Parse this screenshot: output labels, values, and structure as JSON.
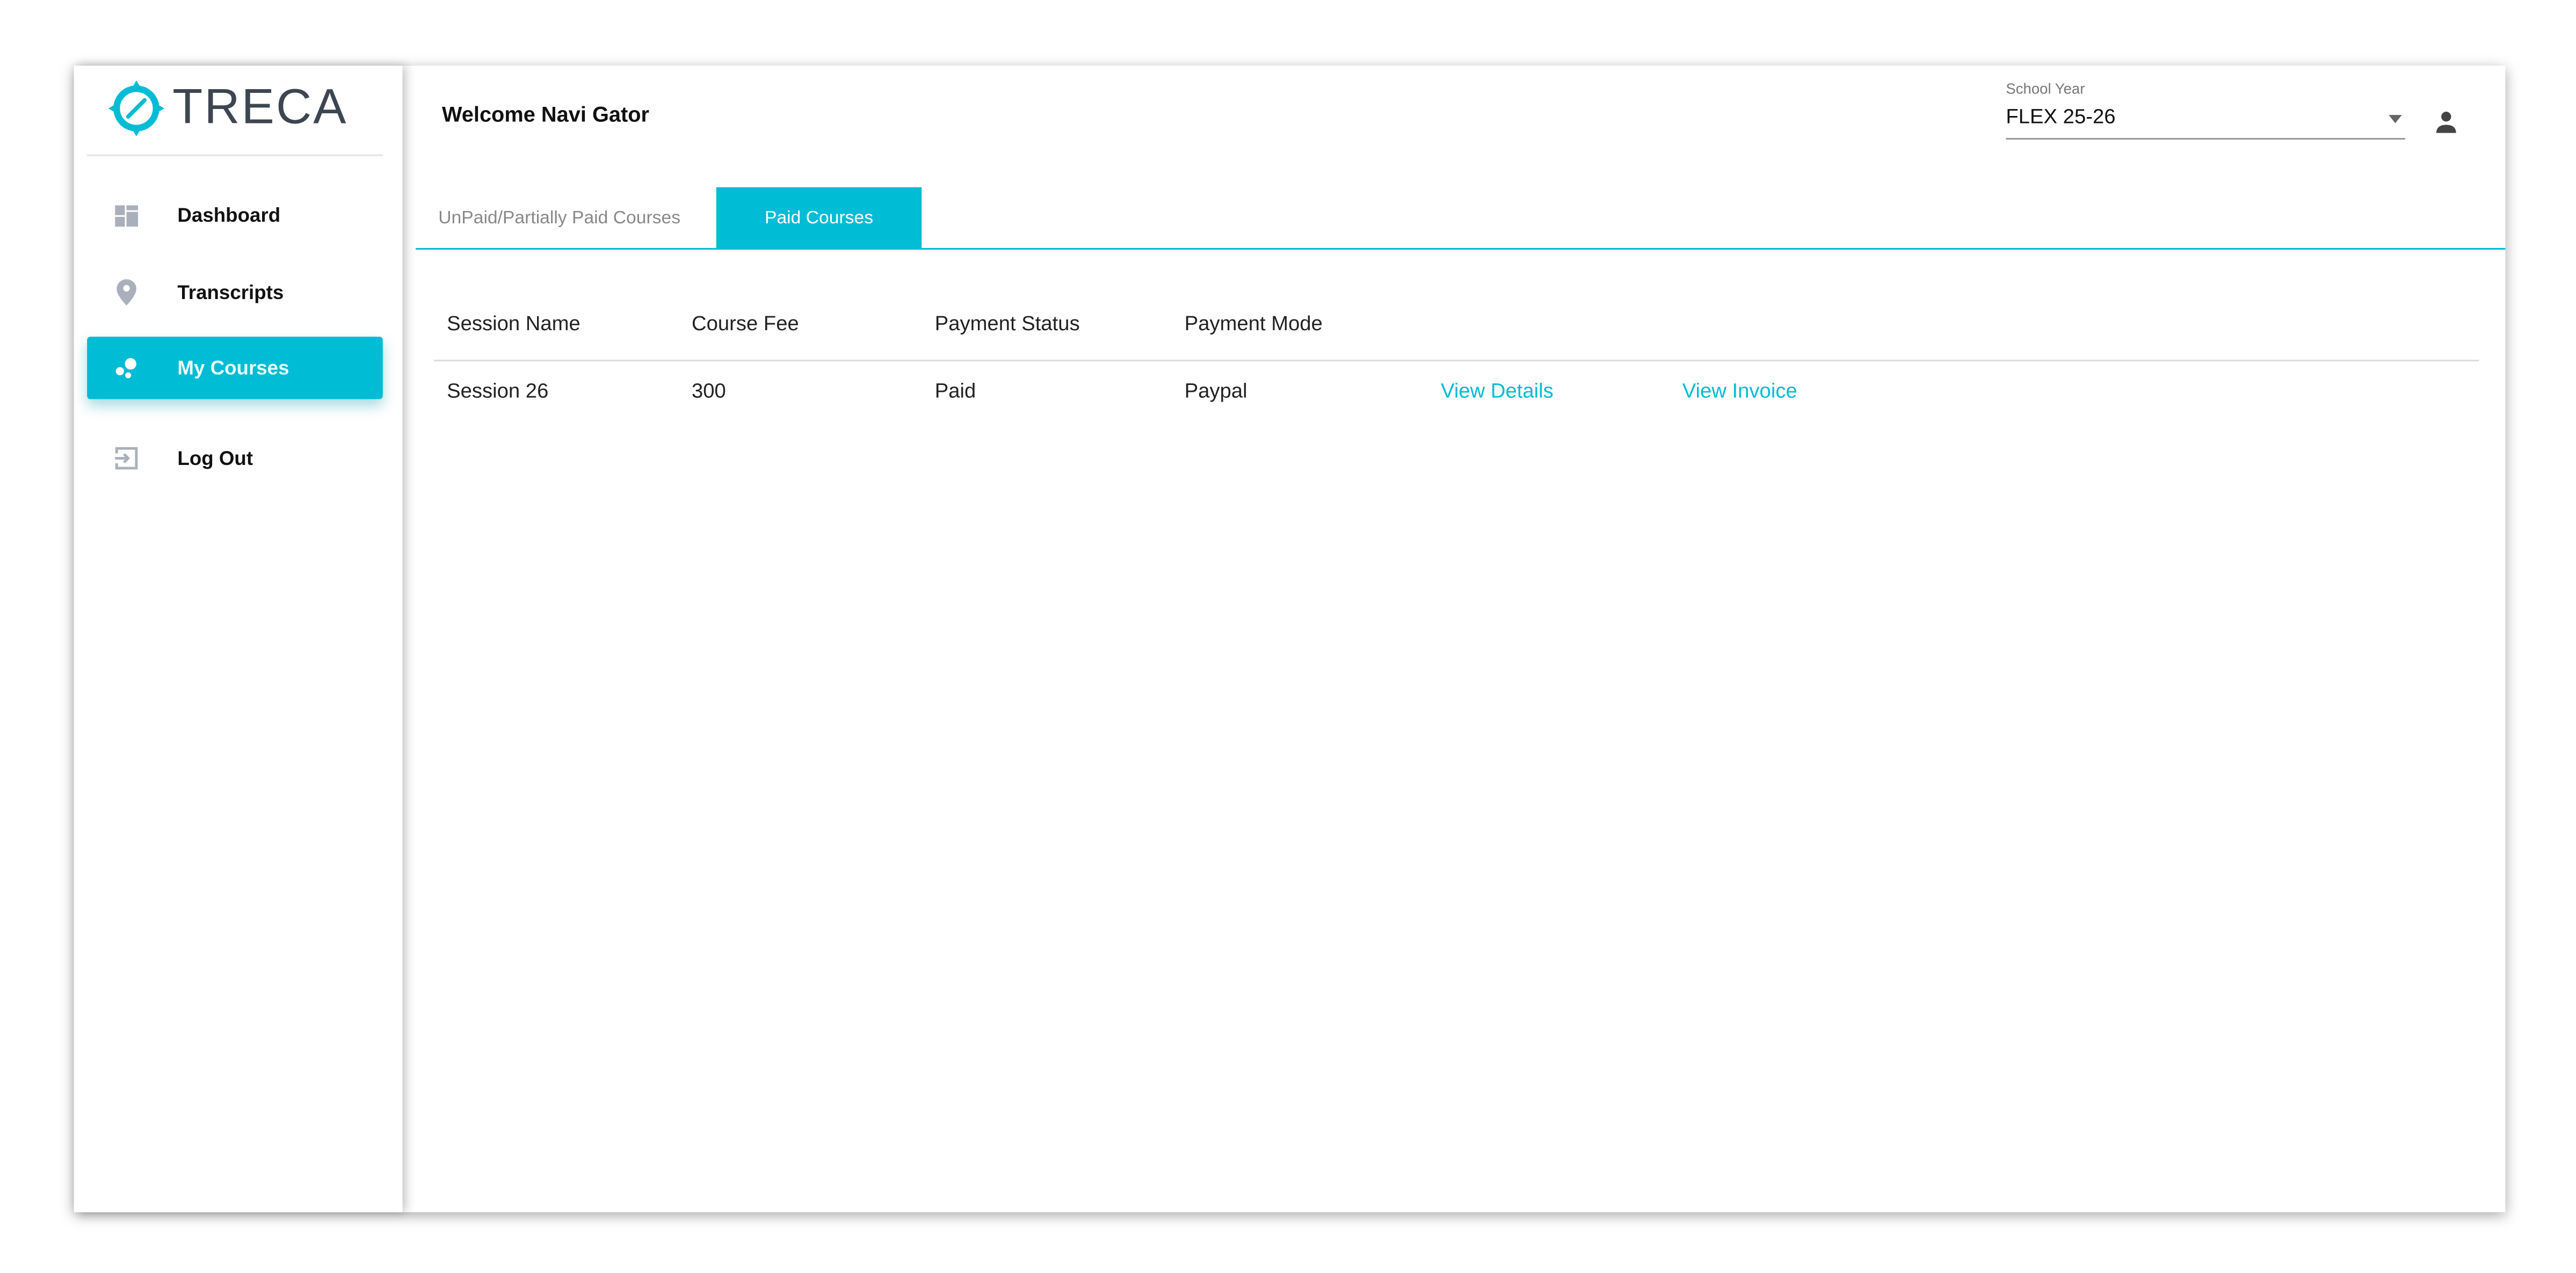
{
  "brand": {
    "name": "TRECA",
    "accent": "#00bcd4"
  },
  "sidebar": {
    "items": [
      {
        "label": "Dashboard",
        "icon": "dashboard-icon"
      },
      {
        "label": "Transcripts",
        "icon": "location-pin-icon"
      },
      {
        "label": "My Courses",
        "icon": "bubbles-icon",
        "active": true
      },
      {
        "label": "Log Out",
        "icon": "logout-icon"
      }
    ]
  },
  "header": {
    "welcome": "Welcome Navi Gator",
    "school_year_label": "School Year",
    "school_year_value": "FLEX 25-26"
  },
  "tabs": [
    {
      "label": "UnPaid/Partially Paid Courses"
    },
    {
      "label": "Paid Courses",
      "active": true
    }
  ],
  "table": {
    "headers": [
      "Session Name",
      "Course Fee",
      "Payment Status",
      "Payment Mode"
    ],
    "rows": [
      {
        "session": "Session 26",
        "fee": "300",
        "status": "Paid",
        "mode": "Paypal",
        "details": "View Details",
        "invoice": "View Invoice"
      }
    ]
  }
}
